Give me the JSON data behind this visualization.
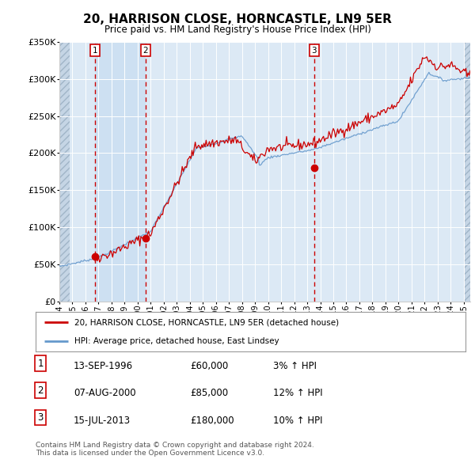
{
  "title": "20, HARRISON CLOSE, HORNCASTLE, LN9 5ER",
  "subtitle": "Price paid vs. HM Land Registry's House Price Index (HPI)",
  "ylim": [
    0,
    350000
  ],
  "xlim_start": 1994.0,
  "xlim_end": 2025.5,
  "hpi_color": "#6699cc",
  "price_color": "#cc0000",
  "sale_marker_color": "#cc0000",
  "background_color": "#ffffff",
  "plot_bg_color": "#dce9f5",
  "hatch_bg_color": "#c8d8e8",
  "grid_color": "#ffffff",
  "sale_dates": [
    1996.71,
    2000.6,
    2013.54
  ],
  "sale_prices": [
    60000,
    85000,
    180000
  ],
  "sale_labels": [
    "1",
    "2",
    "3"
  ],
  "legend_line1": "20, HARRISON CLOSE, HORNCASTLE, LN9 5ER (detached house)",
  "legend_line2": "HPI: Average price, detached house, East Lindsey",
  "table_rows": [
    [
      "1",
      "13-SEP-1996",
      "£60,000",
      "3% ↑ HPI"
    ],
    [
      "2",
      "07-AUG-2000",
      "£85,000",
      "12% ↑ HPI"
    ],
    [
      "3",
      "15-JUL-2013",
      "£180,000",
      "10% ↑ HPI"
    ]
  ],
  "footer": "Contains HM Land Registry data © Crown copyright and database right 2024.\nThis data is licensed under the Open Government Licence v3.0.",
  "xtick_years": [
    1994,
    1995,
    1996,
    1997,
    1998,
    1999,
    2000,
    2001,
    2002,
    2003,
    2004,
    2005,
    2006,
    2007,
    2008,
    2009,
    2010,
    2011,
    2012,
    2013,
    2014,
    2015,
    2016,
    2017,
    2018,
    2019,
    2020,
    2021,
    2022,
    2023,
    2024,
    2025
  ]
}
